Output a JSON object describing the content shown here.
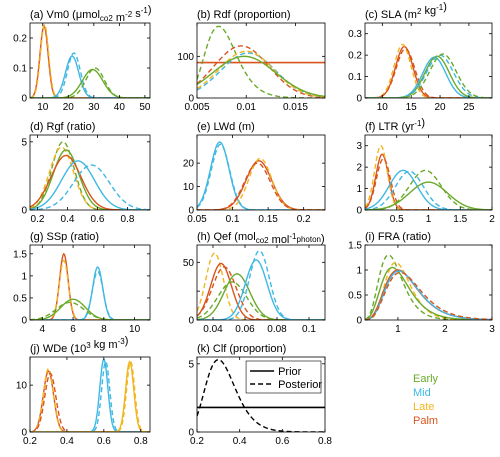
{
  "colors": {
    "early": "#6aaa2a",
    "mid": "#3fb8e3",
    "late": "#f2b51d",
    "palm": "#d9541e",
    "prior": "#000000"
  },
  "group_legend": [
    {
      "label": "Early",
      "key": "early"
    },
    {
      "label": "Mid",
      "key": "mid"
    },
    {
      "label": "Late",
      "key": "late"
    },
    {
      "label": "Palm",
      "key": "palm"
    }
  ],
  "chart_data": [
    {
      "type": "line",
      "title_parts": [
        "(a) Vm0 (",
        "μ",
        "mol",
        "co2",
        " m",
        "-2",
        " s",
        "-1",
        ")"
      ],
      "title_fmt": [
        "n",
        "n",
        "n",
        "sub",
        "n",
        "sup",
        "n",
        "sup",
        "n"
      ],
      "xlim": [
        5,
        52
      ],
      "ylim": [
        0,
        0.25
      ],
      "xticks": [
        10,
        20,
        30,
        40,
        50
      ],
      "xtick_labels": [
        "10",
        "20",
        "30",
        "40",
        "50"
      ],
      "yticks": [
        0,
        0.1,
        0.2
      ],
      "ytick_labels": [
        "0",
        "0.1",
        "0.2"
      ],
      "curves": [
        {
          "group": "palm",
          "style": "solid",
          "mu": 10.5,
          "sigma": 1.6,
          "peak": 0.24
        },
        {
          "group": "late",
          "style": "dashed",
          "mu": 10.7,
          "sigma": 1.6,
          "peak": 0.245
        },
        {
          "group": "mid",
          "style": "solid",
          "mu": 21.5,
          "sigma": 2.6,
          "peak": 0.14
        },
        {
          "group": "mid",
          "style": "dashed",
          "mu": 22.2,
          "sigma": 2.5,
          "peak": 0.15
        },
        {
          "group": "early",
          "style": "solid",
          "mu": 29.5,
          "sigma": 4.0,
          "peak": 0.095
        },
        {
          "group": "early",
          "style": "dashed",
          "mu": 30.5,
          "sigma": 3.6,
          "peak": 0.1
        }
      ]
    },
    {
      "type": "line",
      "title_parts": [
        "(b) Rdf (proportion)"
      ],
      "title_fmt": [
        "n"
      ],
      "xlim": [
        0.005,
        0.018
      ],
      "ylim": [
        0,
        180
      ],
      "xticks": [
        0.005,
        0.01,
        0.015
      ],
      "xtick_labels": [
        "0.005",
        "0.01",
        "0.015"
      ],
      "yticks": [
        0,
        100
      ],
      "ytick_labels": [
        "0",
        "100"
      ],
      "flat": [
        {
          "group": "palm",
          "style": "solid",
          "value": 85
        }
      ],
      "curves": [
        {
          "group": "early",
          "style": "dashed",
          "mu": 0.0072,
          "sigma": 0.0016,
          "peak": 172,
          "lognorm": true
        },
        {
          "group": "palm",
          "style": "dashed",
          "mu": 0.0095,
          "sigma": 0.0028,
          "peak": 125
        },
        {
          "group": "mid",
          "style": "dashed",
          "mu": 0.0102,
          "sigma": 0.0028,
          "peak": 108
        },
        {
          "group": "late",
          "style": "dashed",
          "mu": 0.01,
          "sigma": 0.0028,
          "peak": 112
        },
        {
          "group": "early",
          "style": "solid",
          "mu": 0.0098,
          "sigma": 0.0032,
          "peak": 100
        }
      ]
    },
    {
      "type": "line",
      "title_parts": [
        "(c) SLA (m",
        "2",
        " kg",
        "-1",
        ")"
      ],
      "title_fmt": [
        "n",
        "sup",
        "n",
        "sup",
        "n"
      ],
      "xlim": [
        7,
        29
      ],
      "ylim": [
        0,
        0.35
      ],
      "xticks": [
        10,
        15,
        20,
        25
      ],
      "xtick_labels": [
        "10",
        "15",
        "20",
        "25"
      ],
      "yticks": [
        0,
        0.1,
        0.2,
        0.3
      ],
      "ytick_labels": [
        "0",
        "0.1",
        "0.2",
        "0.3"
      ],
      "curves": [
        {
          "group": "palm",
          "style": "solid",
          "mu": 13.8,
          "sigma": 1.5,
          "peak": 0.24
        },
        {
          "group": "late",
          "style": "dashed",
          "mu": 13.5,
          "sigma": 1.45,
          "peak": 0.25
        },
        {
          "group": "palm",
          "style": "dashed",
          "mu": 14.0,
          "sigma": 1.6,
          "peak": 0.23
        },
        {
          "group": "mid",
          "style": "solid",
          "mu": 19.0,
          "sigma": 2.0,
          "peak": 0.19
        },
        {
          "group": "early",
          "style": "solid",
          "mu": 19.5,
          "sigma": 2.1,
          "peak": 0.195
        },
        {
          "group": "mid",
          "style": "dashed",
          "mu": 20.0,
          "sigma": 2.3,
          "peak": 0.2
        },
        {
          "group": "early",
          "style": "dashed",
          "mu": 20.5,
          "sigma": 2.3,
          "peak": 0.205
        }
      ]
    },
    {
      "type": "line",
      "title_parts": [
        "(d) Rgf (ratio)"
      ],
      "title_fmt": [
        "n"
      ],
      "xlim": [
        0.15,
        0.95
      ],
      "ylim": [
        0,
        5.5
      ],
      "xticks": [
        0.2,
        0.4,
        0.6,
        0.8
      ],
      "xtick_labels": [
        "0.2",
        "0.4",
        "0.6",
        "0.8"
      ],
      "yticks": [
        0,
        5
      ],
      "ytick_labels": [
        "0",
        "5"
      ],
      "curves": [
        {
          "group": "early",
          "style": "dashed",
          "mu": 0.37,
          "sigma": 0.075,
          "peak": 5.0
        },
        {
          "group": "late",
          "style": "dashed",
          "mu": 0.36,
          "sigma": 0.08,
          "peak": 4.6
        },
        {
          "group": "early",
          "style": "solid",
          "mu": 0.39,
          "sigma": 0.085,
          "peak": 4.4
        },
        {
          "group": "palm",
          "style": "solid",
          "mu": 0.39,
          "sigma": 0.1,
          "peak": 4.0
        },
        {
          "group": "mid",
          "style": "dashed",
          "mu": 0.56,
          "sigma": 0.12,
          "peak": 3.3
        },
        {
          "group": "mid",
          "style": "solid",
          "mu": 0.47,
          "sigma": 0.11,
          "peak": 3.6
        }
      ]
    },
    {
      "type": "line",
      "title_parts": [
        "(e) LWd (m)"
      ],
      "title_fmt": [
        "n"
      ],
      "xlim": [
        0.05,
        0.23
      ],
      "ylim": [
        0,
        32
      ],
      "xticks": [
        0.05,
        0.1,
        0.15,
        0.2
      ],
      "xtick_labels": [
        "0.05",
        "0.1",
        "0.15",
        "0.2"
      ],
      "yticks": [
        0,
        10,
        20
      ],
      "ytick_labels": [
        "0",
        "10",
        "20"
      ],
      "curves": [
        {
          "group": "mid",
          "style": "solid",
          "mu": 0.082,
          "sigma": 0.013,
          "peak": 29
        },
        {
          "group": "mid",
          "style": "dashed",
          "mu": 0.083,
          "sigma": 0.013,
          "peak": 28
        },
        {
          "group": "palm",
          "style": "solid",
          "mu": 0.137,
          "sigma": 0.018,
          "peak": 21
        },
        {
          "group": "late",
          "style": "dashed",
          "mu": 0.139,
          "sigma": 0.016,
          "peak": 22
        },
        {
          "group": "palm",
          "style": "dashed",
          "mu": 0.135,
          "sigma": 0.018,
          "peak": 20
        }
      ]
    },
    {
      "type": "line",
      "title_parts": [
        "(f) LTR (yr",
        "-1",
        ")"
      ],
      "title_fmt": [
        "n",
        "sup",
        "n"
      ],
      "xlim": [
        0,
        2
      ],
      "ylim": [
        0,
        3.5
      ],
      "xticks": [
        0.5,
        1,
        1.5,
        2
      ],
      "xtick_labels": [
        "0.5",
        "1",
        "1.5",
        "2"
      ],
      "yticks": [
        0,
        1,
        2,
        3
      ],
      "ytick_labels": [
        "0",
        "1",
        "2",
        "3"
      ],
      "curves": [
        {
          "group": "palm",
          "style": "solid",
          "mu": 0.27,
          "sigma": 0.1,
          "peak": 2.6
        },
        {
          "group": "late",
          "style": "dashed",
          "mu": 0.25,
          "sigma": 0.1,
          "peak": 3.0
        },
        {
          "group": "palm",
          "style": "dashed",
          "mu": 0.29,
          "sigma": 0.11,
          "peak": 2.4
        },
        {
          "group": "mid",
          "style": "solid",
          "mu": 0.6,
          "sigma": 0.22,
          "peak": 1.85
        },
        {
          "group": "mid",
          "style": "dashed",
          "mu": 0.7,
          "sigma": 0.22,
          "peak": 1.8
        },
        {
          "group": "early",
          "style": "solid",
          "mu": 1.0,
          "sigma": 0.3,
          "peak": 1.3
        },
        {
          "group": "early",
          "style": "dashed",
          "mu": 0.95,
          "sigma": 0.25,
          "peak": 1.85
        }
      ]
    },
    {
      "type": "line",
      "title_parts": [
        "(g) SSp (ratio)"
      ],
      "title_fmt": [
        "n"
      ],
      "xlim": [
        3.2,
        11
      ],
      "ylim": [
        0,
        1.7
      ],
      "xticks": [
        4,
        6,
        8,
        10
      ],
      "xtick_labels": [
        "4",
        "6",
        "8",
        "10"
      ],
      "yticks": [
        0,
        0.5,
        1,
        1.5
      ],
      "ytick_labels": [
        "0",
        "0.5",
        "1",
        "1.5"
      ],
      "curves": [
        {
          "group": "palm",
          "style": "solid",
          "mu": 5.4,
          "sigma": 0.28,
          "peak": 1.5
        },
        {
          "group": "late",
          "style": "dashed",
          "mu": 5.4,
          "sigma": 0.3,
          "peak": 1.35
        },
        {
          "group": "mid",
          "style": "solid",
          "mu": 7.6,
          "sigma": 0.33,
          "peak": 1.2
        },
        {
          "group": "mid",
          "style": "dashed",
          "mu": 7.6,
          "sigma": 0.35,
          "peak": 1.1
        },
        {
          "group": "early",
          "style": "solid",
          "mu": 6.0,
          "sigma": 0.8,
          "peak": 0.47
        },
        {
          "group": "early",
          "style": "dashed",
          "mu": 5.8,
          "sigma": 0.9,
          "peak": 0.4
        }
      ]
    },
    {
      "type": "line",
      "title_parts": [
        "(h) Qef (mol",
        "co2",
        " mol",
        "-1",
        "",
        "photon",
        ")"
      ],
      "title_fmt": [
        "n",
        "sub",
        "n",
        "sup",
        "n",
        "sub",
        "n"
      ],
      "xlim": [
        0.03,
        0.11
      ],
      "ylim": [
        0,
        65
      ],
      "xticks": [
        0.04,
        0.06,
        0.08,
        0.1
      ],
      "xtick_labels": [
        "0.04",
        "0.06",
        "0.08",
        "0.1"
      ],
      "yticks": [
        0,
        25,
        50
      ],
      "ytick_labels": [
        "0",
        "",
        "50"
      ],
      "curves": [
        {
          "group": "late",
          "style": "dashed",
          "mu": 0.041,
          "sigma": 0.0055,
          "peak": 58
        },
        {
          "group": "palm",
          "style": "solid",
          "mu": 0.045,
          "sigma": 0.0065,
          "peak": 49
        },
        {
          "group": "palm",
          "style": "dashed",
          "mu": 0.047,
          "sigma": 0.0075,
          "peak": 46
        },
        {
          "group": "early",
          "style": "solid",
          "mu": 0.055,
          "sigma": 0.008,
          "peak": 40
        },
        {
          "group": "early",
          "style": "dashed",
          "mu": 0.052,
          "sigma": 0.009,
          "peak": 33
        },
        {
          "group": "mid",
          "style": "solid",
          "mu": 0.067,
          "sigma": 0.0068,
          "peak": 52
        },
        {
          "group": "mid",
          "style": "dashed",
          "mu": 0.069,
          "sigma": 0.0062,
          "peak": 60
        }
      ]
    },
    {
      "type": "line",
      "title_parts": [
        "(i) FRA (ratio)"
      ],
      "title_fmt": [
        "n"
      ],
      "xlim": [
        0.3,
        3
      ],
      "ylim": [
        0,
        1.5
      ],
      "xticks": [
        1,
        2,
        3
      ],
      "xtick_labels": [
        "1",
        "2",
        "3"
      ],
      "yticks": [
        0,
        0.5,
        1,
        1.5
      ],
      "ytick_labels": [
        "0",
        "0.5",
        "1",
        "1.5"
      ],
      "curves": [
        {
          "group": "early",
          "style": "dashed",
          "mu": 0.8,
          "sigma": 0.25,
          "peak": 1.3,
          "lognorm": true
        },
        {
          "group": "late",
          "style": "dashed",
          "mu": 0.95,
          "sigma": 0.27,
          "peak": 1.15,
          "lognorm": true
        },
        {
          "group": "early",
          "style": "solid",
          "mu": 0.88,
          "sigma": 0.3,
          "peak": 1.05,
          "lognorm": true
        },
        {
          "group": "palm",
          "style": "solid",
          "mu": 1.0,
          "sigma": 0.35,
          "peak": 1.0,
          "lognorm": true
        },
        {
          "group": "mid",
          "style": "solid",
          "mu": 1.02,
          "sigma": 0.35,
          "peak": 0.98,
          "lognorm": true
        },
        {
          "group": "palm",
          "style": "dashed",
          "mu": 1.05,
          "sigma": 0.37,
          "peak": 0.95,
          "lognorm": true
        }
      ]
    },
    {
      "type": "line",
      "title_parts": [
        "(j) WDe (10",
        "3",
        " kg m",
        "-3",
        ")"
      ],
      "title_fmt": [
        "n",
        "sup",
        "n",
        "sup",
        "n"
      ],
      "xlim": [
        0.2,
        0.85
      ],
      "ylim": [
        0,
        16
      ],
      "xticks": [
        0.2,
        0.4,
        0.6,
        0.8
      ],
      "xtick_labels": [
        "0.2",
        "0.4",
        "0.6",
        "0.8"
      ],
      "yticks": [
        0,
        10
      ],
      "ytick_labels": [
        "0",
        "10"
      ],
      "curves": [
        {
          "group": "palm",
          "style": "solid",
          "mu": 0.3,
          "sigma": 0.028,
          "peak": 13
        },
        {
          "group": "late",
          "style": "dashed",
          "mu": 0.3,
          "sigma": 0.027,
          "peak": 13.5
        },
        {
          "group": "palm",
          "style": "dashed",
          "mu": 0.31,
          "sigma": 0.03,
          "peak": 12.5
        },
        {
          "group": "mid",
          "style": "solid",
          "mu": 0.6,
          "sigma": 0.022,
          "peak": 15.5
        },
        {
          "group": "mid",
          "style": "dashed",
          "mu": 0.61,
          "sigma": 0.022,
          "peak": 15
        },
        {
          "group": "late",
          "style": "solid",
          "mu": 0.74,
          "sigma": 0.022,
          "peak": 15
        },
        {
          "group": "late",
          "style": "dashed",
          "mu": 0.745,
          "sigma": 0.022,
          "peak": 15
        }
      ]
    },
    {
      "type": "line",
      "title_parts": [
        "(k) Clf (proportion)"
      ],
      "title_fmt": [
        "n"
      ],
      "xlim": [
        0.2,
        0.8
      ],
      "ylim": [
        0,
        5.5
      ],
      "xticks": [
        0.2,
        0.4,
        0.6,
        0.8
      ],
      "xtick_labels": [
        "0.2",
        "0.4",
        "0.6",
        "0.8"
      ],
      "yticks": [
        0,
        5
      ],
      "ytick_labels": [
        "0",
        "5"
      ],
      "legend": {
        "position": "top-right",
        "entries": [
          {
            "label": "Prior",
            "style": "solid"
          },
          {
            "label": "Posterior",
            "style": "dashed"
          }
        ]
      },
      "flat": [
        {
          "group": "prior",
          "style": "solid",
          "value": 1.8
        }
      ],
      "curves": [
        {
          "group": "prior",
          "style": "dashed",
          "mu": 0.3,
          "sigma": 0.07,
          "peak": 5.3,
          "lognorm": true
        }
      ]
    }
  ]
}
